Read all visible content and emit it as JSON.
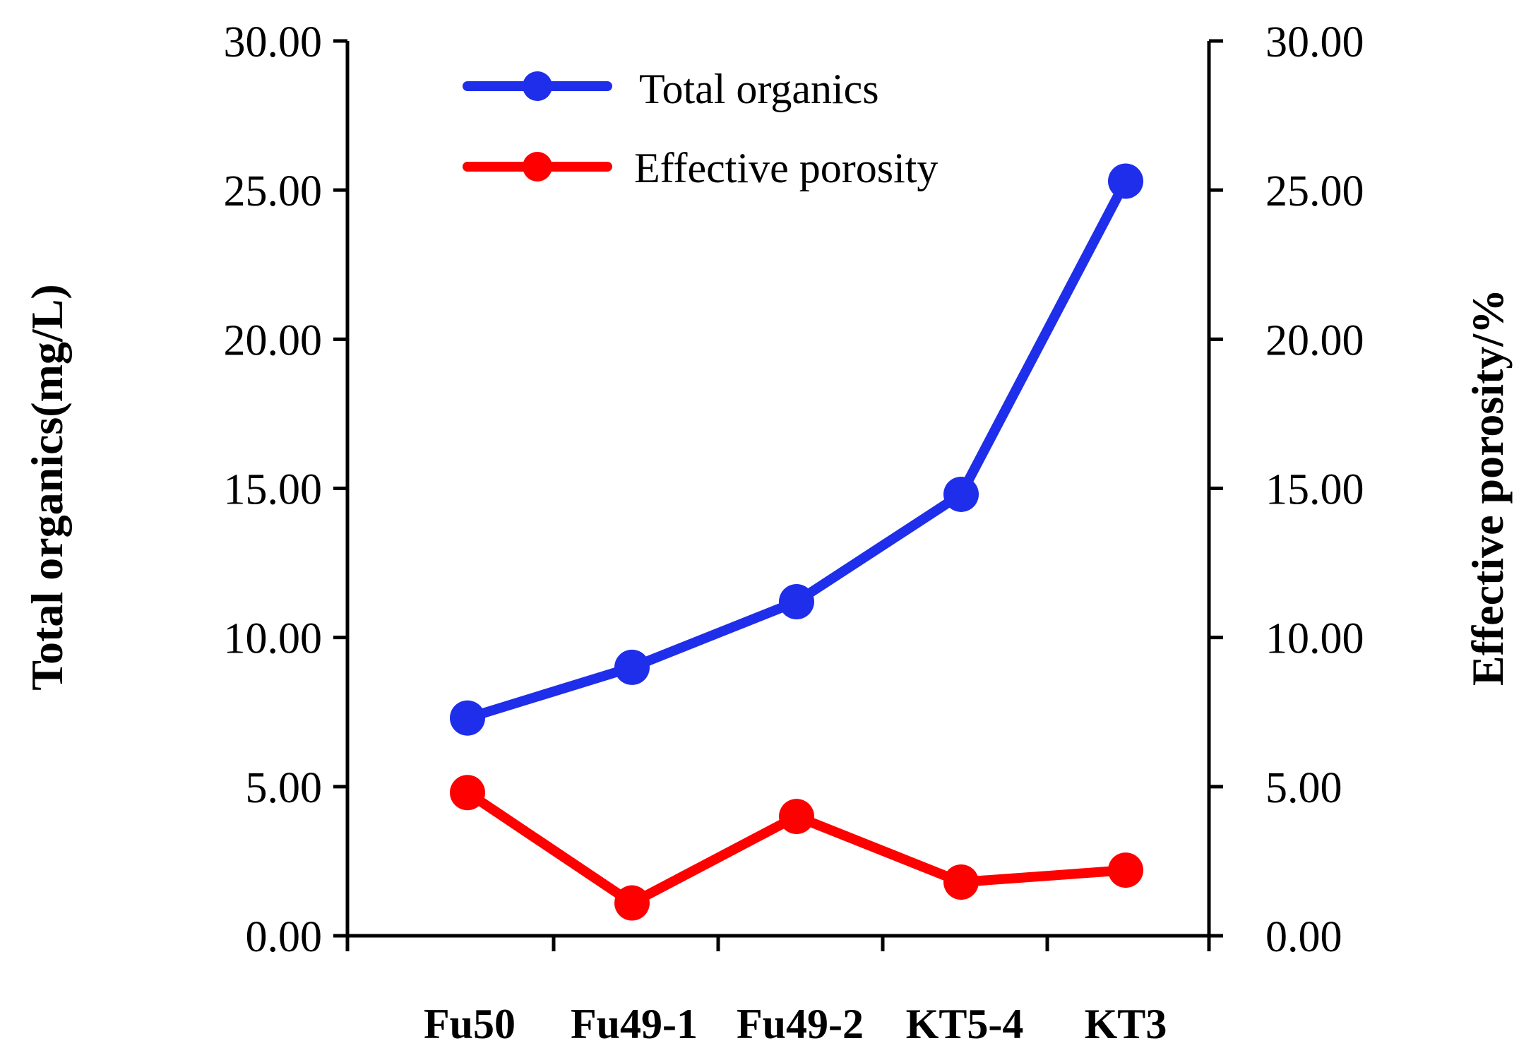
{
  "chart_data": {
    "type": "line",
    "title": "",
    "categories": [
      "Fu50",
      "Fu49-1",
      "Fu49-2",
      "KT5-4",
      "KT3"
    ],
    "series": [
      {
        "name": "Total organics",
        "axis": "left",
        "color": "#1f2eea",
        "values": [
          7.3,
          9.0,
          11.2,
          14.8,
          25.3
        ]
      },
      {
        "name": "Effective porosity",
        "axis": "right",
        "color": "#ff0000",
        "values": [
          4.8,
          1.1,
          4.0,
          1.8,
          2.2
        ]
      }
    ],
    "ylabel_left": "Total organics(mg/L)",
    "ylabel_right": "Effective porosity/%",
    "ylim_left": [
      0,
      30
    ],
    "ylim_right": [
      0,
      30
    ],
    "yticks": [
      "0.00",
      "5.00",
      "10.00",
      "15.00",
      "20.00",
      "25.00",
      "30.00"
    ],
    "legend_position": "top-left",
    "grid": false
  }
}
